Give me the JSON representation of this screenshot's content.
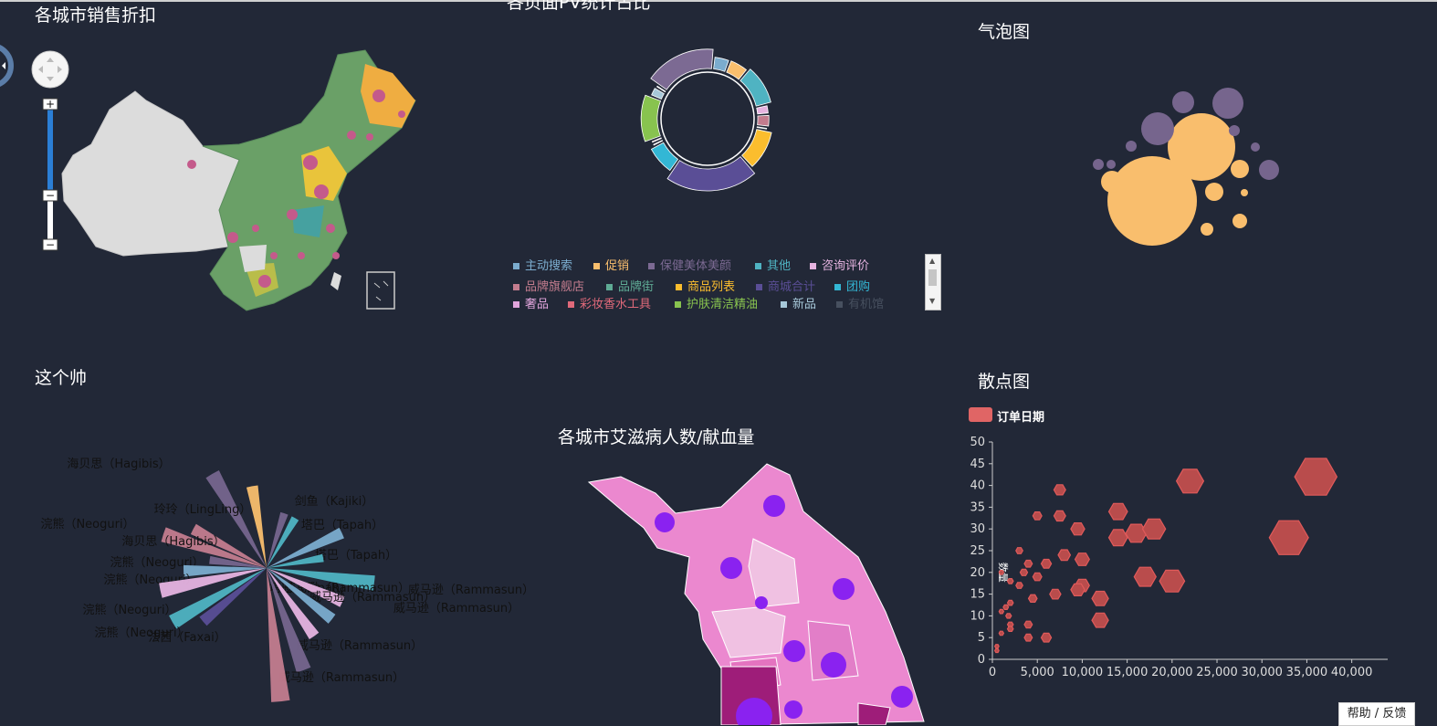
{
  "titles": {
    "map1": "各城市销售折扣",
    "donut": "各页面PV统计占比",
    "bubble": "气泡图",
    "rose": "这个帅",
    "map2": "各城市艾滋病人数/献血量",
    "scatter": "散点图"
  },
  "help_label": "帮助 / 反馈",
  "colors": {
    "background": "#222837",
    "map_green": "#6aa067",
    "map_gray": "#dcdcdc",
    "map_orange": "#efad41",
    "map_star": "#c45a8b",
    "scatter_red": "#d94e4e"
  },
  "map_controls": {
    "pan_icon": "pan-control-icon",
    "zoom_in": "+",
    "zoom_out": "−"
  },
  "donut_legend": [
    {
      "label": "主动搜索",
      "color": "#7bacce"
    },
    {
      "label": "促销",
      "color": "#f9be6d"
    },
    {
      "label": "保健美体美颜",
      "color": "#7c6a93"
    },
    {
      "label": "其他",
      "color": "#4fb3c2"
    },
    {
      "label": "咨询评价",
      "color": "#e6b3e0"
    },
    {
      "label": "品牌旗舰店",
      "color": "#c37c8e"
    },
    {
      "label": "品牌街",
      "color": "#5fab95"
    },
    {
      "label": "商品列表",
      "color": "#fbbd2e"
    },
    {
      "label": "商城合计",
      "color": "#5a4e96"
    },
    {
      "label": "团购",
      "color": "#33b7d5"
    },
    {
      "label": "奢品",
      "color": "#e1a5dc"
    },
    {
      "label": "彩妆香水工具",
      "color": "#e0697a"
    },
    {
      "label": "护肤清洁精油",
      "color": "#88c34f"
    },
    {
      "label": "新品",
      "color": "#a7c8d9"
    },
    {
      "label": "有机馆",
      "color": "#47505f"
    }
  ],
  "chart_data": [
    {
      "type": "map",
      "title": "各城市销售折扣"
    },
    {
      "type": "pie",
      "title": "各页面PV统计占比",
      "categories": [
        "主动搜索",
        "促销",
        "其他",
        "咨询评价",
        "品牌旗舰店",
        "品牌街",
        "商品列表",
        "商城合计",
        "团购",
        "奢品",
        "彩妆香水工具",
        "护肤清洁精油",
        "新品",
        "有机馆",
        "保健美体美颜"
      ],
      "values": [
        5,
        6,
        12,
        3,
        4,
        1,
        12,
        25,
        9,
        1,
        1,
        14,
        3,
        1,
        20
      ]
    },
    {
      "type": "scatter",
      "title": "气泡图",
      "values": [
        49,
        37,
        17,
        12,
        18,
        12,
        11,
        10,
        10,
        8,
        7,
        6,
        6,
        6,
        5,
        5,
        4
      ]
    },
    {
      "type": "bar",
      "title": "这个帅",
      "categories": [
        "海贝思（Hagibis）",
        "玲玲（LingLing）",
        "浣熊（Neoguri）",
        "海贝思（Hagibis）",
        "浣熊（Neoguri）",
        "浣熊（Neoguri）",
        "浣熊（Neoguri）",
        "浣熊（Neoguri）",
        "法茜（Faxai）",
        "剑鱼（Kajiki）",
        "塔巴（Tapah）",
        "塔巴（Tapah）",
        "塔巴（Tapah）",
        "威马逊（Rammasun）",
        "威马逊（Rammasun）",
        "威马逊（Rammasun）",
        "威马逊（Rammasun）",
        "威马逊（Rammasun）",
        "威马逊（Rammasun）"
      ],
      "values": [
        3,
        2,
        2,
        3,
        1,
        2,
        3,
        3,
        2,
        1,
        1,
        2,
        1,
        3,
        2,
        2,
        2,
        3,
        4
      ]
    },
    {
      "type": "map",
      "title": "各城市艾滋病人数/献血量"
    },
    {
      "type": "scatter",
      "title": "散点图",
      "series": [
        {
          "name": "订单日期",
          "values": [
            [
              36000,
              42
            ],
            [
              33000,
              28
            ],
            [
              22000,
              41
            ],
            [
              20000,
              18
            ],
            [
              14000,
              34
            ],
            [
              16000,
              29
            ],
            [
              18000,
              30
            ],
            [
              14000,
              28
            ],
            [
              10000,
              23
            ],
            [
              10000,
              17
            ],
            [
              9500,
              30
            ],
            [
              9500,
              16
            ],
            [
              12000,
              14
            ],
            [
              12000,
              9
            ],
            [
              7500,
              39
            ],
            [
              5000,
              33
            ],
            [
              7500,
              33
            ],
            [
              3000,
              25
            ],
            [
              4000,
              22
            ],
            [
              6000,
              22
            ],
            [
              1000,
              20
            ],
            [
              2000,
              18
            ],
            [
              4500,
              14
            ],
            [
              4500,
              14
            ],
            [
              7000,
              15
            ],
            [
              6000,
              5
            ],
            [
              2000,
              13
            ],
            [
              1800,
              10
            ],
            [
              2000,
              8
            ],
            [
              2000,
              7
            ],
            [
              1000,
              6
            ],
            [
              500,
              3
            ],
            [
              500,
              2
            ],
            [
              4000,
              8
            ],
            [
              4000,
              5
            ],
            [
              8000,
              24
            ],
            [
              17000,
              19
            ],
            [
              1500,
              12
            ],
            [
              1000,
              11
            ],
            [
              5000,
              19
            ],
            [
              3000,
              17
            ],
            [
              3500,
              20
            ]
          ]
        }
      ],
      "ylabel": "数量",
      "xlim": [
        0,
        44000
      ],
      "ylim": [
        0,
        50
      ],
      "xticks": [
        "0",
        "5,000",
        "10,000",
        "15,000",
        "20,000",
        "25,000",
        "30,000",
        "35,000",
        "40,000"
      ],
      "yticks": [
        "0",
        "5",
        "10",
        "15",
        "20",
        "25",
        "30",
        "35",
        "40",
        "45",
        "50"
      ]
    }
  ]
}
